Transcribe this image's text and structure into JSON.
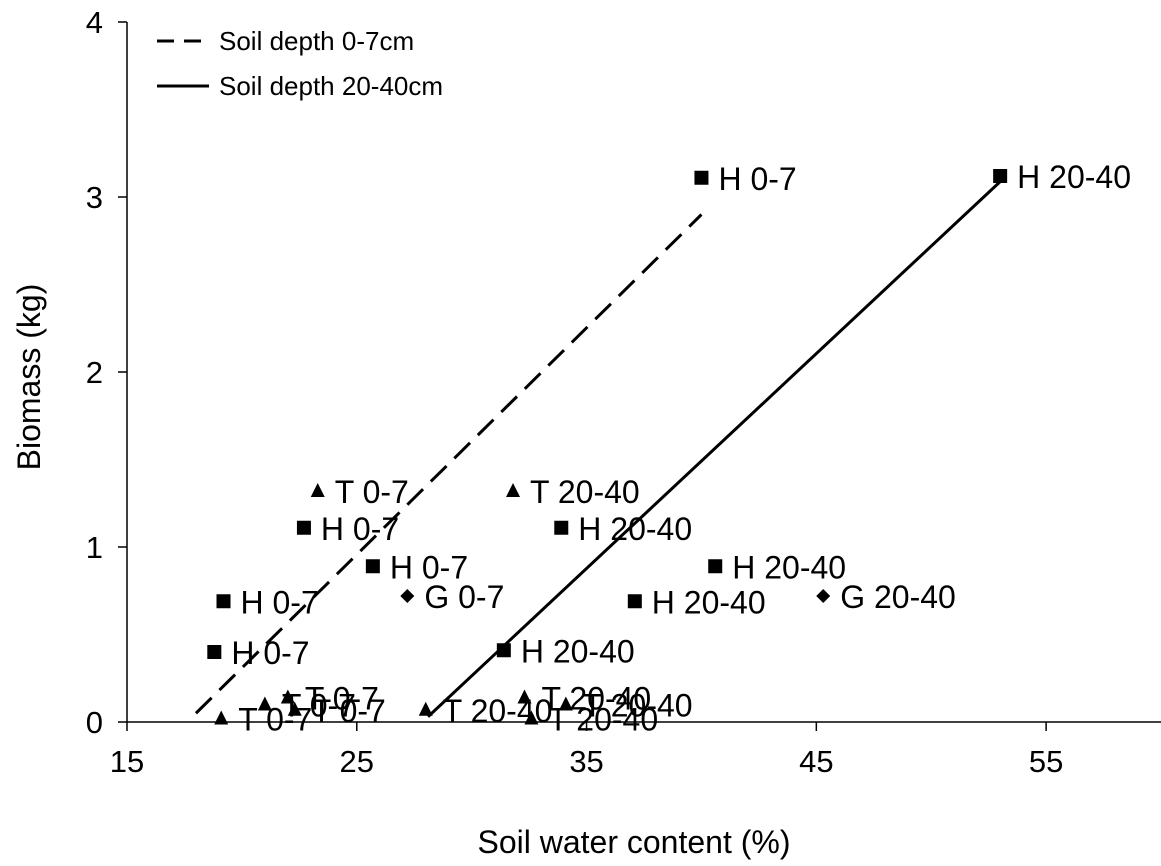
{
  "chart_data": {
    "type": "scatter",
    "title": "",
    "xlabel": "Soil water content (%)",
    "ylabel": "Biomass (kg)",
    "xlim": [
      15,
      60
    ],
    "ylim": [
      0,
      4
    ],
    "x_ticks": [
      "15",
      "25",
      "35",
      "45",
      "55"
    ],
    "y_ticks": [
      "0",
      "1",
      "2",
      "3",
      "4"
    ],
    "grid": false,
    "legend": {
      "placement": "top-left",
      "entries": [
        {
          "label": "Soil depth 0-7cm",
          "line_style": "dashed"
        },
        {
          "label": "Soil depth 20-40cm",
          "line_style": "solid"
        }
      ]
    },
    "lines": [
      {
        "name": "Soil depth 0-7cm",
        "style": "dashed",
        "x": [
          18.0,
          40.0
        ],
        "y": [
          0.05,
          2.9
        ]
      },
      {
        "name": "Soil depth 20-40cm",
        "style": "solid",
        "x": [
          28.1,
          53.1
        ],
        "y": [
          0.03,
          3.1
        ]
      }
    ],
    "points": [
      {
        "x": 40.0,
        "y": 3.11,
        "marker": "square",
        "label": "H 0-7"
      },
      {
        "x": 53.0,
        "y": 3.12,
        "marker": "square",
        "label": "H 20-40"
      },
      {
        "x": 23.3,
        "y": 1.32,
        "marker": "triangle",
        "label": "T 0-7"
      },
      {
        "x": 31.8,
        "y": 1.32,
        "marker": "triangle",
        "label": "T 20-40"
      },
      {
        "x": 22.7,
        "y": 1.11,
        "marker": "square",
        "label": "H 0-7"
      },
      {
        "x": 33.9,
        "y": 1.11,
        "marker": "square",
        "label": "H 20-40"
      },
      {
        "x": 25.7,
        "y": 0.89,
        "marker": "square",
        "label": "H 0-7"
      },
      {
        "x": 40.6,
        "y": 0.89,
        "marker": "square",
        "label": "H 20-40"
      },
      {
        "x": 19.2,
        "y": 0.69,
        "marker": "square",
        "label": "H 0-7"
      },
      {
        "x": 27.2,
        "y": 0.72,
        "marker": "diamond",
        "label": "G 0-7"
      },
      {
        "x": 37.1,
        "y": 0.69,
        "marker": "square",
        "label": "H 20-40"
      },
      {
        "x": 45.3,
        "y": 0.72,
        "marker": "diamond",
        "label": "G 20-40"
      },
      {
        "x": 18.8,
        "y": 0.4,
        "marker": "square",
        "label": "H 0-7"
      },
      {
        "x": 31.4,
        "y": 0.41,
        "marker": "square",
        "label": "H 20-40"
      },
      {
        "x": 22.0,
        "y": 0.14,
        "marker": "triangle",
        "label": "T 0-7"
      },
      {
        "x": 21.0,
        "y": 0.1,
        "marker": "triangle",
        "label": "T 0-7"
      },
      {
        "x": 22.3,
        "y": 0.07,
        "marker": "triangle",
        "label": "T 0-7"
      },
      {
        "x": 19.1,
        "y": 0.02,
        "marker": "triangle",
        "label": "T 0-7"
      },
      {
        "x": 32.3,
        "y": 0.14,
        "marker": "triangle",
        "label": "T 20-40"
      },
      {
        "x": 34.1,
        "y": 0.1,
        "marker": "triangle",
        "label": "T 20-40"
      },
      {
        "x": 28.0,
        "y": 0.07,
        "marker": "triangle",
        "label": "T 20-40"
      },
      {
        "x": 32.6,
        "y": 0.02,
        "marker": "triangle",
        "label": "T 20-40"
      }
    ]
  }
}
